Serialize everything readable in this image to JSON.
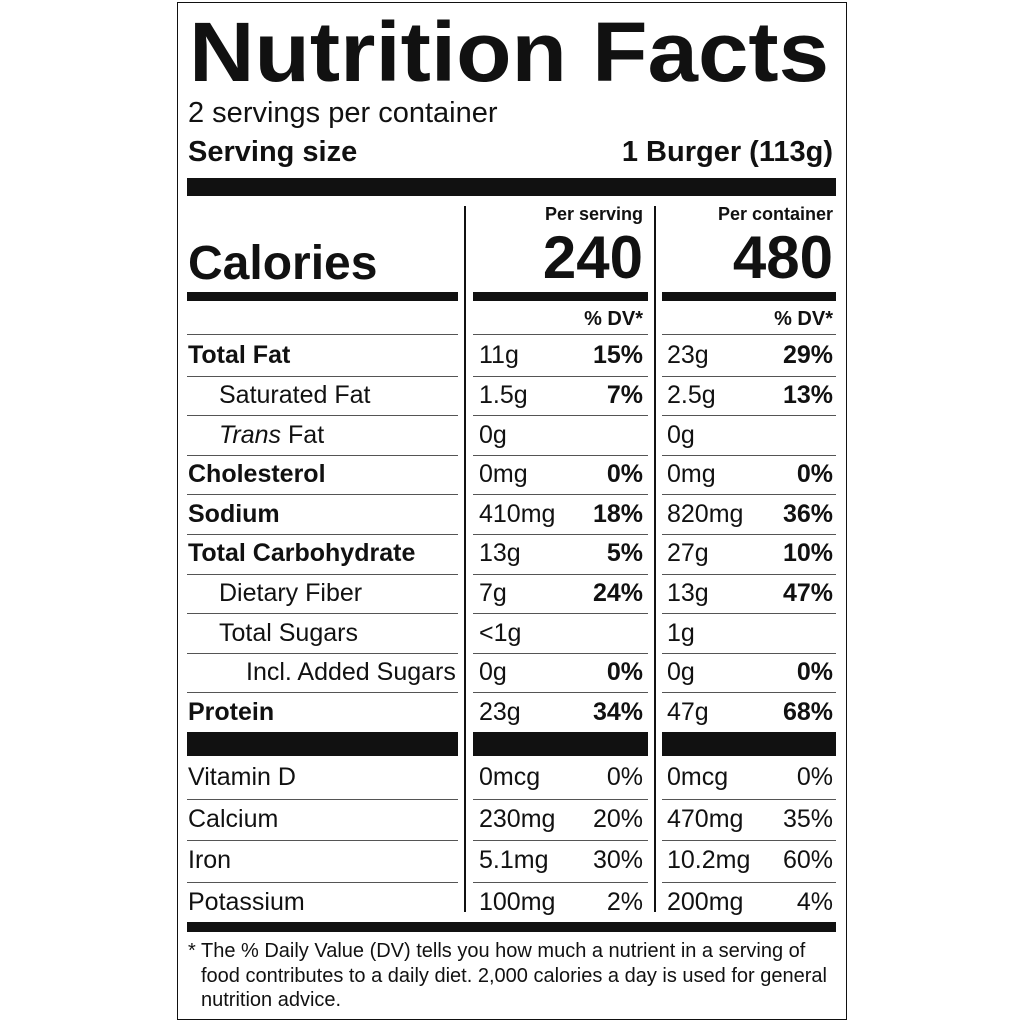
{
  "header": {
    "title": "Nutrition Facts",
    "servings": "2 servings per container",
    "serving_size_label": "Serving size",
    "serving_size": "1 Burger (113g)"
  },
  "calories": {
    "label": "Calories",
    "per_serving_label": "Per serving",
    "per_serving": "240",
    "per_container_label": "Per container",
    "per_container": "480",
    "dv_heading_serving": "% DV*",
    "dv_heading_container": "% DV*"
  },
  "nutrients": [
    {
      "label": "Total Fat",
      "bold": true,
      "level": 0,
      "serving": {
        "amount": "11g",
        "dv": "15%"
      },
      "container": {
        "amount": "23g",
        "dv": "29%"
      }
    },
    {
      "label": "Saturated Fat",
      "level": 1,
      "serving": {
        "amount": "1.5g",
        "dv": "7%"
      },
      "container": {
        "amount": "2.5g",
        "dv": "13%"
      }
    },
    {
      "label_italic": "Trans",
      "label": "Fat",
      "level": 1,
      "serving": {
        "amount": "0g"
      },
      "container": {
        "amount": "0g"
      }
    },
    {
      "label": "Cholesterol",
      "bold": true,
      "level": 0,
      "serving": {
        "amount": "0mg",
        "dv": "0%"
      },
      "container": {
        "amount": "0mg",
        "dv": "0%"
      }
    },
    {
      "label": "Sodium",
      "bold": true,
      "level": 0,
      "serving": {
        "amount": "410mg",
        "dv": "18%"
      },
      "container": {
        "amount": "820mg",
        "dv": "36%"
      }
    },
    {
      "label": "Total Carbohydrate",
      "bold": true,
      "level": 0,
      "serving": {
        "amount": "13g",
        "dv": "5%"
      },
      "container": {
        "amount": "27g",
        "dv": "10%"
      }
    },
    {
      "label": "Dietary Fiber",
      "level": 1,
      "serving": {
        "amount": "7g",
        "dv": "24%"
      },
      "container": {
        "amount": "13g",
        "dv": "47%"
      }
    },
    {
      "label": "Total Sugars",
      "level": 1,
      "serving": {
        "amount": "<1g"
      },
      "container": {
        "amount": "1g"
      }
    },
    {
      "label": "Incl. Added Sugars",
      "level": 2,
      "serving": {
        "amount": "0g",
        "dv": "0%"
      },
      "container": {
        "amount": "0g",
        "dv": "0%"
      }
    },
    {
      "label": "Protein",
      "bold": true,
      "level": 0,
      "serving": {
        "amount": "23g",
        "dv": "34%"
      },
      "container": {
        "amount": "47g",
        "dv": "68%"
      }
    }
  ],
  "vitamins": [
    {
      "label": "Vitamin D",
      "serving": {
        "amount": "0mcg",
        "dv": "0%"
      },
      "container": {
        "amount": "0mcg",
        "dv": "0%"
      }
    },
    {
      "label": "Calcium",
      "serving": {
        "amount": "230mg",
        "dv": "20%"
      },
      "container": {
        "amount": "470mg",
        "dv": "35%"
      }
    },
    {
      "label": "Iron",
      "serving": {
        "amount": "5.1mg",
        "dv": "30%"
      },
      "container": {
        "amount": "10.2mg",
        "dv": "60%"
      }
    },
    {
      "label": "Potassium",
      "serving": {
        "amount": "100mg",
        "dv": "2%"
      },
      "container": {
        "amount": "200mg",
        "dv": "4%"
      }
    }
  ],
  "footnote": {
    "lines": [
      "* The % Daily Value (DV) tells you how much a nutrient in a serving of",
      "food contributes to a daily diet. 2,000 calories a day is used for general",
      "nutrition advice."
    ]
  }
}
